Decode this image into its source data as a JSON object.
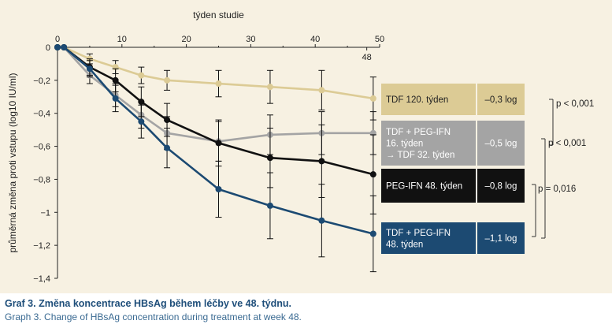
{
  "chart_data": {
    "type": "line",
    "xlabel": "týden studie",
    "ylabel": "průměrná změna proti vstupu (log10 IU/ml)",
    "xlim": [
      0,
      50
    ],
    "ylim": [
      -1.4,
      0
    ],
    "x_ticks": [
      0,
      10,
      20,
      30,
      40,
      50
    ],
    "y_ticks": [
      0,
      -0.2,
      -0.4,
      -0.6,
      -0.8,
      -1,
      -1.2,
      -1.4
    ],
    "y_tick_labels": [
      "0",
      "−0,2",
      "−0,4",
      "−0,6",
      "−0,8",
      "−1",
      "−1,2",
      "−1,4"
    ],
    "extra_x_tick": "48",
    "grid": false,
    "series": [
      {
        "name": "TDF 120. týden",
        "value_label": "–0,3 log",
        "color": "#dccb95",
        "text_color": "#222222",
        "x": [
          0,
          1,
          5,
          9,
          13,
          17,
          25,
          33,
          41,
          49
        ],
        "y": [
          0,
          0,
          -0.07,
          -0.12,
          -0.17,
          -0.2,
          -0.22,
          -0.24,
          -0.26,
          -0.31
        ],
        "err": [
          0,
          0,
          0.03,
          0.04,
          0.05,
          0.06,
          0.08,
          0.1,
          0.12,
          0.13
        ]
      },
      {
        "name": "TDF + PEG-IFN 16. týden → TDF 32. týden",
        "name_lines": [
          "TDF + PEG-IFN",
          "16. týden",
          "→ TDF 32. týden"
        ],
        "value_label": "–0,5 log",
        "color": "#a4a4a4",
        "text_color": "#ffffff",
        "x": [
          0,
          1,
          5,
          9,
          13,
          17,
          25,
          33,
          41,
          49
        ],
        "y": [
          0,
          0,
          -0.17,
          -0.29,
          -0.41,
          -0.52,
          -0.57,
          -0.53,
          -0.52,
          -0.52
        ],
        "err": [
          0,
          0,
          0.05,
          0.07,
          0.08,
          0.1,
          0.12,
          0.12,
          0.13,
          0.13
        ]
      },
      {
        "name": "PEG-IFN 48. týden",
        "value_label": "–0,8 log",
        "color": "#111111",
        "text_color": "#ffffff",
        "x": [
          0,
          1,
          5,
          9,
          13,
          17,
          25,
          33,
          41,
          49
        ],
        "y": [
          0,
          0,
          -0.12,
          -0.2,
          -0.33,
          -0.44,
          -0.58,
          -0.67,
          -0.69,
          -0.77
        ],
        "err": [
          0,
          0,
          0.05,
          0.07,
          0.09,
          0.1,
          0.14,
          0.18,
          0.22,
          0.24
        ]
      },
      {
        "name": "TDF + PEG-IFN 48. týden",
        "name_lines": [
          "TDF + PEG-IFN",
          "48. týden"
        ],
        "value_label": "–1,1 log",
        "color": "#1c4a72",
        "text_color": "#ffffff",
        "x": [
          0,
          1,
          5,
          9,
          13,
          17,
          25,
          33,
          41,
          49
        ],
        "y": [
          0,
          0,
          -0.13,
          -0.31,
          -0.45,
          -0.61,
          -0.86,
          -0.96,
          -1.05,
          -1.13
        ],
        "err": [
          0,
          0,
          0.05,
          0.08,
          0.1,
          0.12,
          0.17,
          0.2,
          0.22,
          0.23
        ]
      }
    ],
    "annotations": [
      "p < 0,001",
      "p < 0,001",
      "p = 0,016"
    ]
  },
  "caption": {
    "cz": "Graf 3. Změna koncentrace HBsAg během léčby ve 48. týdnu.",
    "en": "Graph 3. Change of HBsAg concentration during treatment at week 48."
  }
}
